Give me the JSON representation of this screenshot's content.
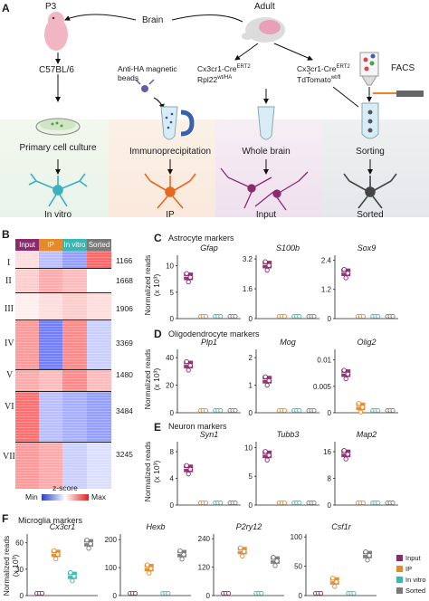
{
  "panel_a": {
    "label": "A",
    "p3": "P3",
    "adult": "Adult",
    "brain": "Brain",
    "strain": "C57BL/6",
    "antibody": "Anti-HA magnetic beads",
    "antibody_l1": "Anti-HA magnetic",
    "antibody_l2": "beads",
    "line1_a": "Cx3cr1-Cre",
    "line1_a_sup": "ERT2",
    "line1_b": "Rpl22",
    "line1_b_sup": "wt/HA",
    "line2_a": "Cx3cr1-Cre",
    "line2_a_sup": "ERT2",
    "line2_b": "TdTomato",
    "line2_b_sup": "wt/fl",
    "facs": "FACS",
    "steps": [
      "Primary cell culture",
      "Immunoprecipitation",
      "Whole brain",
      "Sorting"
    ],
    "outcomes": [
      "In vitro",
      "IP",
      "Input",
      "Sorted"
    ]
  },
  "panel_b": {
    "label": "B",
    "columns": [
      {
        "name": "Input",
        "color": "#8b2a6e"
      },
      {
        "name": "IP",
        "color": "#e58a2a"
      },
      {
        "name": "In vitro",
        "color": "#39b8b3"
      },
      {
        "name": "Sorted",
        "color": "#7a7a7a"
      }
    ],
    "clusters": [
      {
        "id": "I",
        "count": "1166"
      },
      {
        "id": "II",
        "count": "1668"
      },
      {
        "id": "III",
        "count": "1906"
      },
      {
        "id": "IV",
        "count": "3369"
      },
      {
        "id": "V",
        "count": "1480"
      },
      {
        "id": "VI",
        "count": "3484"
      },
      {
        "id": "VII",
        "count": "3245"
      }
    ],
    "scale_title": "z-score",
    "scale_min": "Min",
    "scale_max": "Max"
  },
  "panel_c": {
    "label": "C",
    "title": "Astrocyte markers",
    "ylabel_1": "Normalized reads",
    "ylabel_2": "(x 10³)",
    "genes": [
      "Gfap",
      "S100b",
      "Sox9"
    ]
  },
  "panel_d": {
    "label": "D",
    "title": "Oligodendrocyte markers",
    "ylabel_1": "Normalized reads",
    "ylabel_2": "(x 10³)",
    "genes": [
      "Plp1",
      "Mog",
      "Olig2"
    ]
  },
  "panel_e": {
    "label": "E",
    "title": "Neuron markers",
    "ylabel_1": "Normalized reads",
    "ylabel_2": "(x 10³)",
    "genes": [
      "Syn1",
      "Tubb3",
      "Map2"
    ]
  },
  "panel_f": {
    "label": "F",
    "title": "Microglia markers",
    "ylabel_1": "Normalized reads",
    "ylabel_2": "(x 10³)",
    "genes": [
      "Cx3cr1",
      "Hexb",
      "P2ry12",
      "Csf1r"
    ],
    "legend": [
      "Input",
      "IP",
      "In vitro",
      "Sorted"
    ]
  },
  "chart_data": [
    {
      "type": "scatter",
      "title": "Gfap",
      "xlabel": "",
      "ylabel": "Normalized reads (x 10³)",
      "ylim": [
        0,
        12
      ],
      "yticks": [
        "0",
        "5",
        "10"
      ],
      "categories": [
        "Input",
        "IP",
        "In vitro",
        "Sorted"
      ],
      "values": [
        8,
        0,
        0,
        0
      ]
    },
    {
      "type": "scatter",
      "title": "S100b",
      "xlabel": "",
      "ylabel": "Normalized reads (x 10³)",
      "ylim": [
        0,
        3.4
      ],
      "yticks": [
        "0",
        "1.6",
        "3.2"
      ],
      "categories": [
        "Input",
        "IP",
        "In vitro",
        "Sorted"
      ],
      "values": [
        2.9,
        0,
        0,
        0
      ]
    },
    {
      "type": "scatter",
      "title": "Sox9",
      "xlabel": "",
      "ylabel": "Normalized reads (x 10³)",
      "ylim": [
        0,
        2.6
      ],
      "yticks": [
        "0",
        "1.2",
        "2.4"
      ],
      "categories": [
        "Input",
        "IP",
        "In vitro",
        "Sorted"
      ],
      "values": [
        1.9,
        0,
        0,
        0
      ]
    },
    {
      "type": "scatter",
      "title": "Plp1",
      "xlabel": "",
      "ylabel": "Normalized reads (x 10³)",
      "ylim": [
        0,
        46
      ],
      "yticks": [
        "0",
        "20",
        "40"
      ],
      "categories": [
        "Input",
        "IP",
        "In vitro",
        "Sorted"
      ],
      "values": [
        35,
        0,
        0,
        0
      ]
    },
    {
      "type": "scatter",
      "title": "Mog",
      "xlabel": "",
      "ylabel": "Normalized reads (x 10³)",
      "ylim": [
        0,
        2.3
      ],
      "yticks": [
        "0",
        "1",
        "2"
      ],
      "categories": [
        "Input",
        "IP",
        "In vitro",
        "Sorted"
      ],
      "values": [
        1.2,
        0,
        0,
        0
      ]
    },
    {
      "type": "scatter",
      "title": "Olig2",
      "xlabel": "",
      "ylabel": "Normalized reads (x 10³)",
      "ylim": [
        0,
        0.012
      ],
      "yticks": [
        "0",
        "0.005",
        "0.01"
      ],
      "categories": [
        "Input",
        "IP",
        "In vitro",
        "Sorted"
      ],
      "values": [
        0.0075,
        0.0012,
        0,
        0
      ]
    },
    {
      "type": "scatter",
      "title": "Syn1",
      "xlabel": "",
      "ylabel": "Normalized reads (x 10³)",
      "ylim": [
        0,
        9.5
      ],
      "yticks": [
        "0",
        "4",
        "8"
      ],
      "categories": [
        "Input",
        "IP",
        "In vitro",
        "Sorted"
      ],
      "values": [
        5.5,
        0,
        0,
        0
      ]
    },
    {
      "type": "scatter",
      "title": "Tubb3",
      "xlabel": "",
      "ylabel": "Normalized reads (x 10³)",
      "ylim": [
        0,
        11
      ],
      "yticks": [
        "0",
        "5",
        "10"
      ],
      "categories": [
        "Input",
        "IP",
        "In vitro",
        "Sorted"
      ],
      "values": [
        8.8,
        0,
        0,
        0
      ]
    },
    {
      "type": "scatter",
      "title": "Map2",
      "xlabel": "",
      "ylabel": "Normalized reads (x 10³)",
      "ylim": [
        0,
        19
      ],
      "yticks": [
        "0",
        "8",
        "16"
      ],
      "categories": [
        "Input",
        "IP",
        "In vitro",
        "Sorted"
      ],
      "values": [
        15.5,
        0,
        0,
        0
      ]
    },
    {
      "type": "scatter",
      "title": "Cx3cr1",
      "xlabel": "",
      "ylabel": "Normalized reads (x 10³)",
      "ylim": [
        0,
        70
      ],
      "yticks": [
        "0",
        "30",
        "60"
      ],
      "categories": [
        "Input",
        "IP",
        "In vitro",
        "Sorted"
      ],
      "values": [
        0,
        48,
        23,
        60
      ]
    },
    {
      "type": "scatter",
      "title": "Hexb",
      "xlabel": "",
      "ylabel": "Normalized reads (x 10³)",
      "ylim": [
        0,
        220
      ],
      "yticks": [
        "0",
        "100",
        "200"
      ],
      "categories": [
        "Input",
        "IP",
        "In vitro",
        "Sorted"
      ],
      "values": [
        0,
        100,
        0,
        150
      ]
    },
    {
      "type": "scatter",
      "title": "P2ry12",
      "xlabel": "",
      "ylabel": "Normalized reads (x 10³)",
      "ylim": [
        0,
        260
      ],
      "yticks": [
        "0",
        "120",
        "240"
      ],
      "categories": [
        "Input",
        "IP",
        "In vitro",
        "Sorted"
      ],
      "values": [
        0,
        190,
        0,
        150
      ]
    },
    {
      "type": "scatter",
      "title": "Csf1r",
      "xlabel": "",
      "ylabel": "Normalized reads (x 10³)",
      "ylim": [
        0,
        105
      ],
      "yticks": [
        "0",
        "50",
        "100"
      ],
      "categories": [
        "Input",
        "IP",
        "In vitro",
        "Sorted"
      ],
      "values": [
        0,
        25,
        0,
        70
      ]
    }
  ]
}
